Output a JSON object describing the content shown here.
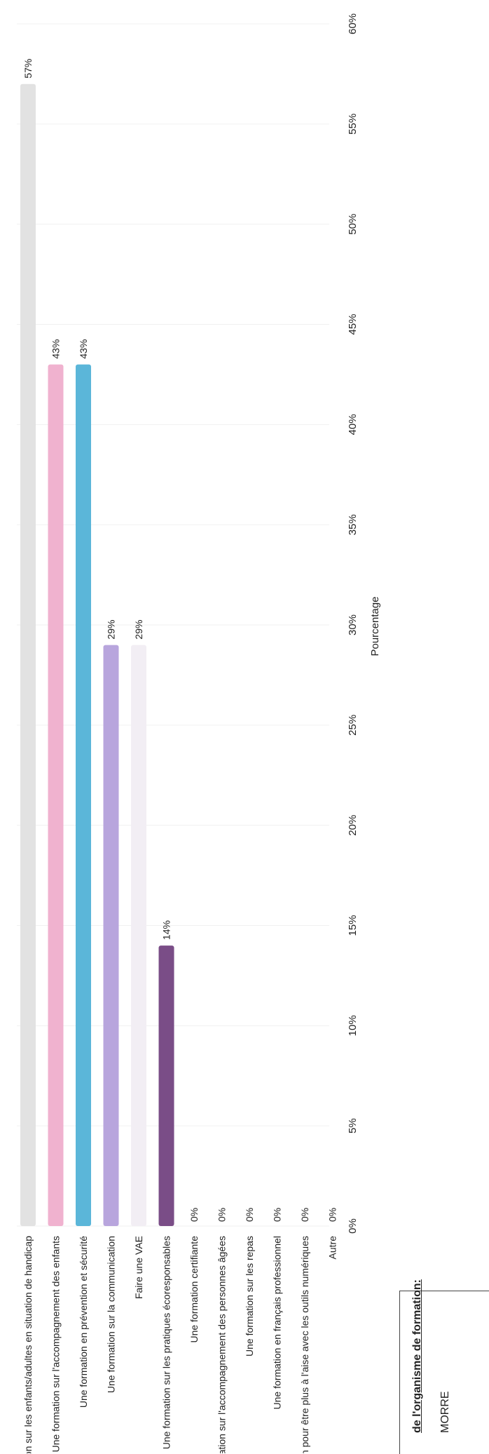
{
  "chart_data": {
    "type": "bar",
    "orientation": "horizontal",
    "xlabel": "Pourcentage",
    "ylabel": "",
    "xlim": [
      0,
      60
    ],
    "x_ticks": [
      "0%",
      "5%",
      "10%",
      "15%",
      "20%",
      "25%",
      "30%",
      "35%",
      "40%",
      "45%",
      "50%",
      "55%",
      "60%"
    ],
    "categories": [
      "Une formation sur les enfants/adultes en situation de handicap",
      "Une formation sur l'accompagnement des enfants",
      "Une formation en prévention et sécurité",
      "Une formation sur la communication",
      "Faire une VAE",
      "Une formation sur les pratiques écoresponsables",
      "Une formation certifiante",
      "Une formation sur l'accompagnement des personnes âgées",
      "Une formation sur les repas",
      "Une formation en français professionnel",
      "Une formation pour être plus à l'aise avec les outils numériques",
      "Autre"
    ],
    "values": [
      57,
      43,
      43,
      29,
      29,
      14,
      0,
      0,
      0,
      0,
      0,
      0
    ],
    "value_labels": [
      "57%",
      "43%",
      "43%",
      "29%",
      "29%",
      "14%",
      "0%",
      "0%",
      "0%",
      "0%",
      "0%",
      "0%"
    ],
    "colors": [
      "#e2e2e2",
      "#f0b2cf",
      "#5bb6d9",
      "#b8a5dd",
      "#f2eef4",
      "#7a4d87",
      "#e0e0e0",
      "#e0e0e0",
      "#e0e0e0",
      "#e0e0e0",
      "#e0e0e0",
      "#e0e0e0"
    ],
    "grid": true
  },
  "info_box": {
    "title": "de l'organisme de formation:",
    "line": "MORRE"
  }
}
